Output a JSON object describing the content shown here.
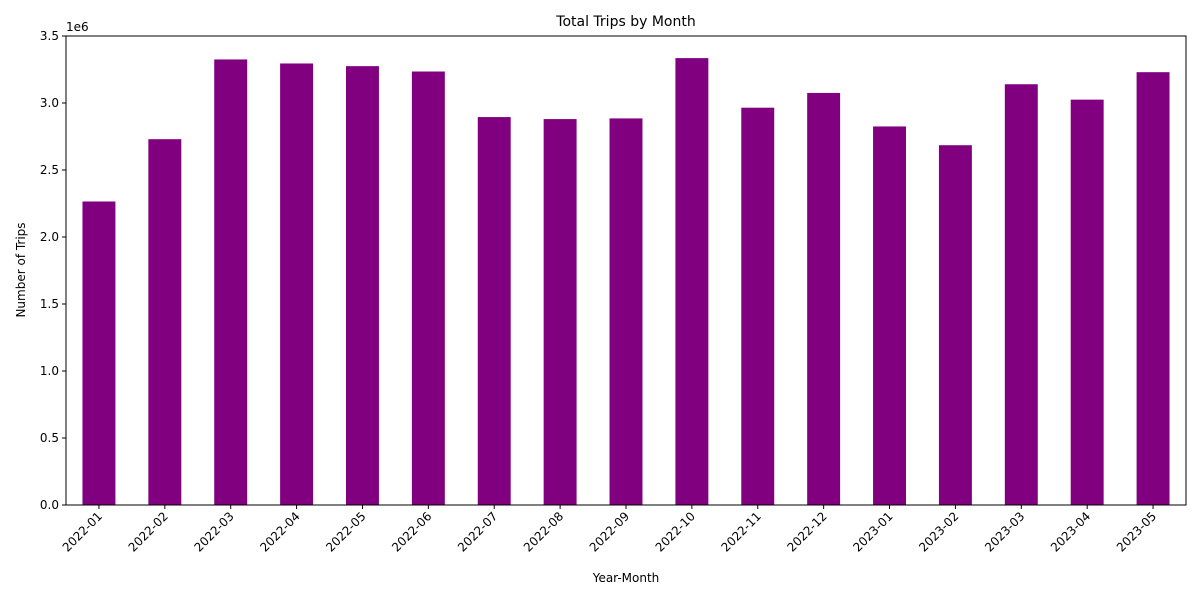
{
  "chart_data": {
    "type": "bar",
    "title": "Total Trips by Month",
    "xlabel": "Year-Month",
    "ylabel": "Number of Trips",
    "y_offset_label": "1e6",
    "y_scale": 1000000,
    "ylim": [
      0,
      3500000
    ],
    "yticks": [
      0,
      500000,
      1000000,
      1500000,
      2000000,
      2500000,
      3000000,
      3500000
    ],
    "ytick_labels": [
      "0.0",
      "0.5",
      "1.0",
      "1.5",
      "2.0",
      "2.5",
      "3.0",
      "3.5"
    ],
    "categories": [
      "2022-01",
      "2022-02",
      "2022-03",
      "2022-04",
      "2022-05",
      "2022-06",
      "2022-07",
      "2022-08",
      "2022-09",
      "2022-10",
      "2022-11",
      "2022-12",
      "2023-01",
      "2023-02",
      "2023-03",
      "2023-04",
      "2023-05"
    ],
    "values": [
      2265000,
      2730000,
      3325000,
      3295000,
      3275000,
      3235000,
      2895000,
      2880000,
      2885000,
      3335000,
      2965000,
      3075000,
      2825000,
      2685000,
      3140000,
      3025000,
      3230000
    ],
    "bar_color": "#800080",
    "grid": false,
    "legend": "none"
  }
}
